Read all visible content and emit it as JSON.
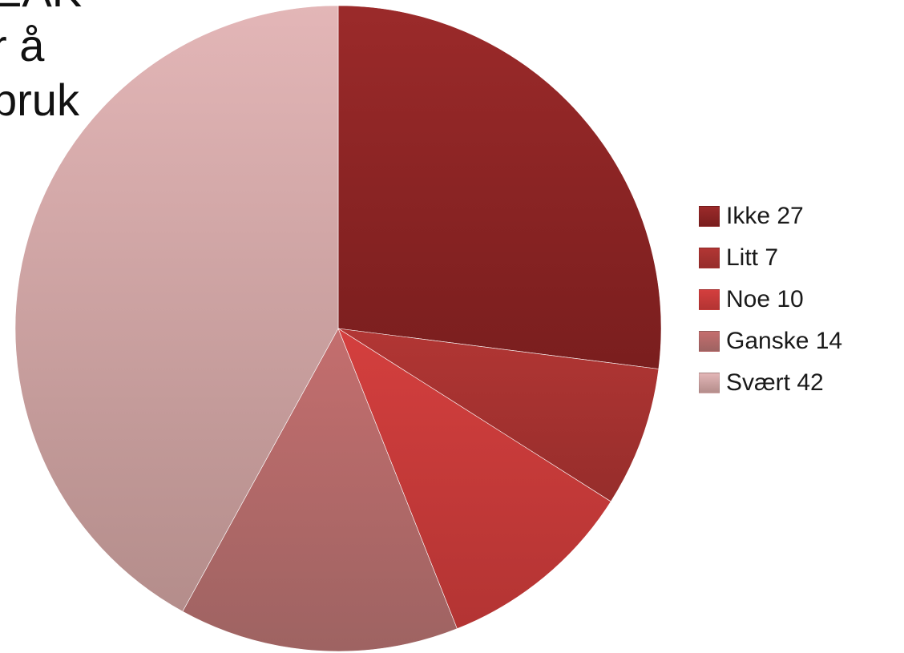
{
  "slide": {
    "title_fragment": "EAK\nr å\nbruk"
  },
  "chart_data": {
    "type": "pie",
    "title": "",
    "legend_position": "right",
    "categories": [
      "Ikke 27",
      "Litt 7",
      "Noe 10",
      "Ganske 14",
      "Svært 42"
    ],
    "values": [
      27,
      7,
      10,
      14,
      42
    ],
    "colors": [
      {
        "top": "#9b2a2a",
        "bottom": "#7a1e1e"
      },
      {
        "top": "#b23634",
        "bottom": "#962d2b"
      },
      {
        "top": "#d43f3e",
        "bottom": "#b33433"
      },
      {
        "top": "#c46e6e",
        "bottom": "#9e6362"
      },
      {
        "top": "#e3b6b7",
        "bottom": "#b48d8b"
      }
    ]
  }
}
